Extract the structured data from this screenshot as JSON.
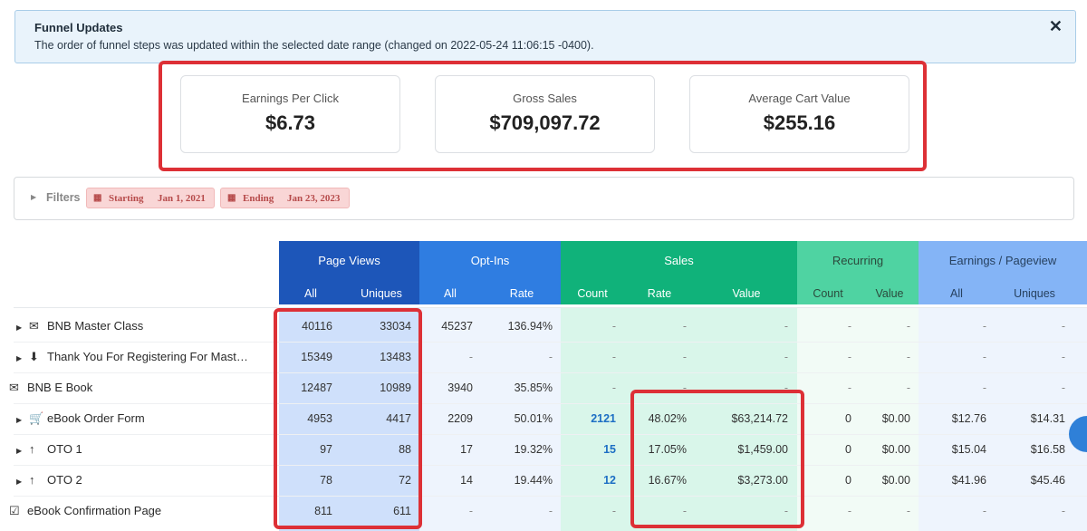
{
  "alert": {
    "title": "Funnel Updates",
    "message": "The order of funnel steps was updated within the selected date range (changed on 2022-05-24 11:06:15 -0400).",
    "close_glyph": "✕"
  },
  "metrics": [
    {
      "label": "Earnings Per Click",
      "value": "$6.73"
    },
    {
      "label": "Gross Sales",
      "value": "$709,097.72"
    },
    {
      "label": "Average Cart Value",
      "value": "$255.16"
    }
  ],
  "filters": {
    "label": "Filters",
    "starting_label": "Starting",
    "starting_date": "Jan 1, 2021",
    "ending_label": "Ending",
    "ending_date": "Jan 23, 2023"
  },
  "table": {
    "groups": [
      "Page Views",
      "Opt-Ins",
      "Sales",
      "Recurring",
      "Earnings / Pageview"
    ],
    "subheaders": {
      "pv_all": "All",
      "pv_uniques": "Uniques",
      "opt_all": "All",
      "opt_rate": "Rate",
      "sales_count": "Count",
      "sales_rate": "Rate",
      "sales_value": "Value",
      "rec_count": "Count",
      "rec_value": "Value",
      "epp_all": "All",
      "epp_uniques": "Uniques"
    },
    "rows": [
      {
        "name": "BNB Master Class",
        "icon": "envelope-icon",
        "cells": [
          "40116",
          "33034",
          "45237",
          "136.94%",
          "-",
          "-",
          "-",
          "-",
          "-",
          "-",
          "-"
        ]
      },
      {
        "name": "Thank You For Registering For Mast…",
        "icon": "download-icon",
        "cells": [
          "15349",
          "13483",
          "-",
          "-",
          "-",
          "-",
          "-",
          "-",
          "-",
          "-",
          "-"
        ]
      },
      {
        "name": "BNB E Book",
        "icon": "envelope-filled-icon",
        "cells": [
          "12487",
          "10989",
          "3940",
          "35.85%",
          "-",
          "-",
          "-",
          "-",
          "-",
          "-",
          "-"
        ]
      },
      {
        "name": "eBook Order Form",
        "icon": "cart-icon",
        "cells": [
          "4953",
          "4417",
          "2209",
          "50.01%",
          "2121",
          "48.02%",
          "$63,214.72",
          "0",
          "$0.00",
          "$12.76",
          "$14.31"
        ]
      },
      {
        "name": "OTO 1",
        "icon": "arrow-up-icon",
        "cells": [
          "97",
          "88",
          "17",
          "19.32%",
          "15",
          "17.05%",
          "$1,459.00",
          "0",
          "$0.00",
          "$15.04",
          "$16.58"
        ]
      },
      {
        "name": "OTO 2",
        "icon": "arrow-up-icon",
        "cells": [
          "78",
          "72",
          "14",
          "19.44%",
          "12",
          "16.67%",
          "$3,273.00",
          "0",
          "$0.00",
          "$41.96",
          "$45.46"
        ]
      },
      {
        "name": "eBook Confirmation Page",
        "icon": "checkbox-icon",
        "cells": [
          "811",
          "611",
          "-",
          "-",
          "-",
          "-",
          "-",
          "-",
          "-",
          "-",
          "-"
        ]
      }
    ]
  },
  "colors": {
    "page_views_header": "#1d56b9",
    "optins_header": "#2f7de1",
    "sales_header": "#10b27a",
    "recurring_header": "#4fd3a2",
    "epp_header": "#84b4f6",
    "highlight": "#dd3036",
    "link": "#1d6fc4"
  }
}
